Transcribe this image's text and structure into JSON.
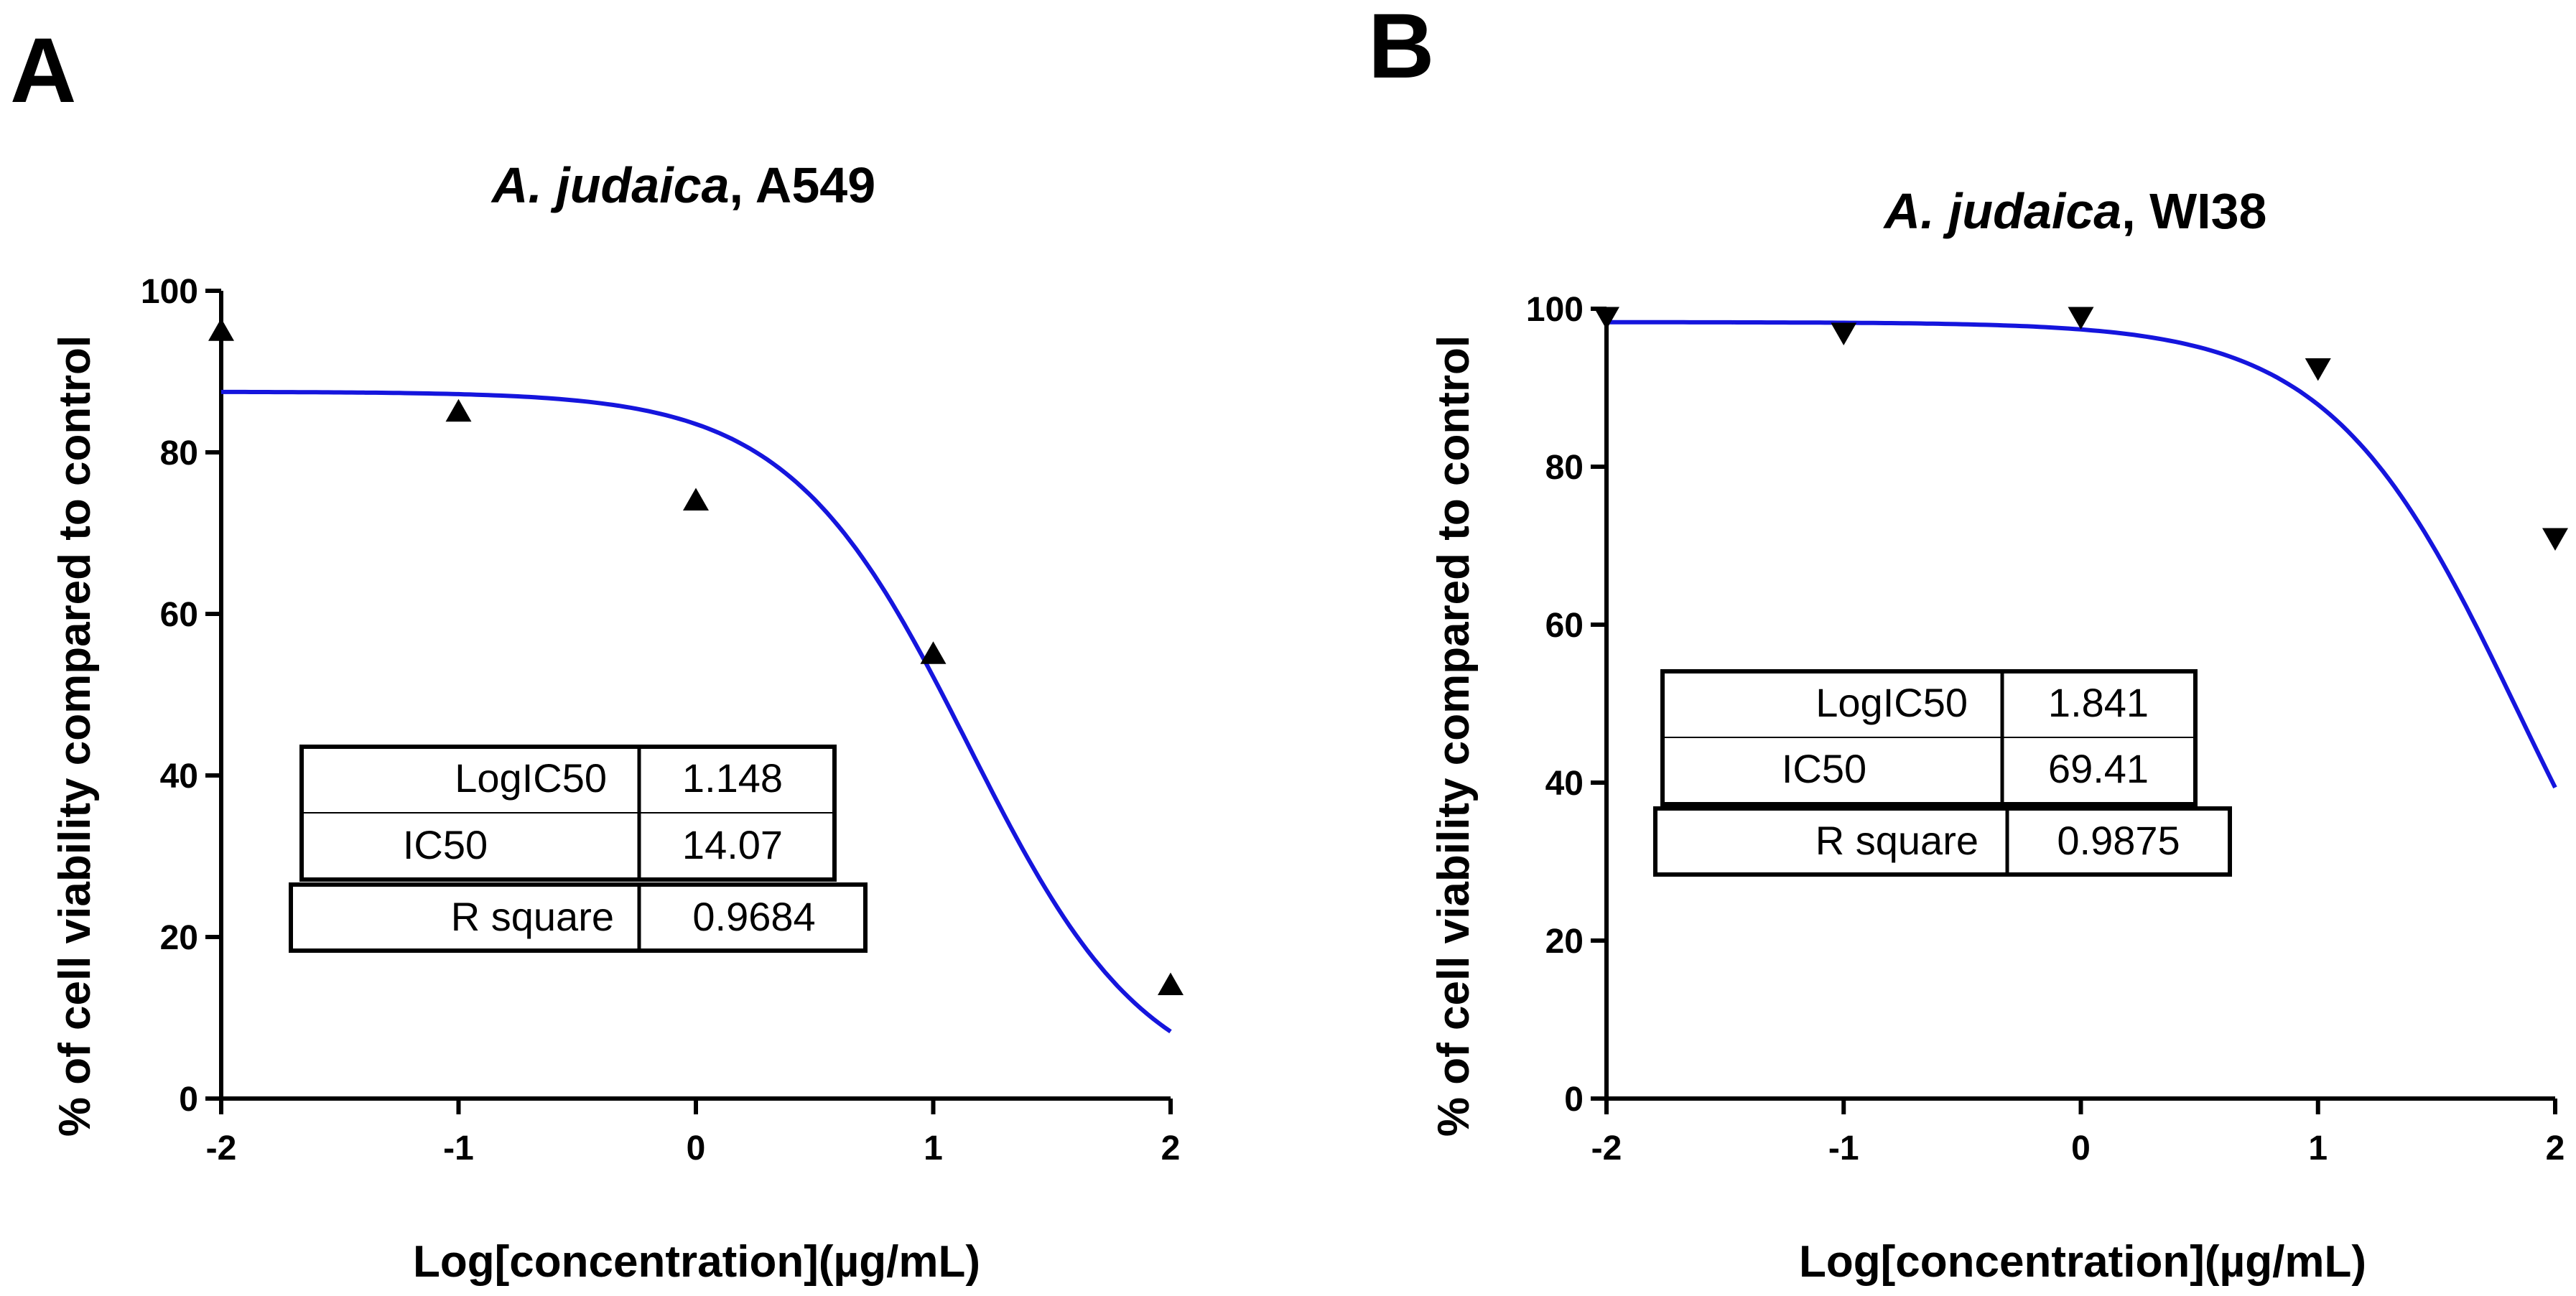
{
  "chart_data": [
    {
      "type": "scatter",
      "panel": "A",
      "title_italic": "A. judaica",
      "title_suffix": ", A549",
      "xlabel": "Log[concentration](µg/mL)",
      "ylabel": "% of cell viability compared to control",
      "xlim": [
        -2,
        2
      ],
      "ylim": [
        0,
        100
      ],
      "xticks": [
        -2,
        -1,
        0,
        1,
        2
      ],
      "yticks": [
        0,
        20,
        40,
        60,
        80,
        100
      ],
      "marker": "triangle-up",
      "series": [
        {
          "name": "data",
          "x": [
            -2,
            -1,
            0,
            1,
            2
          ],
          "y": [
            95,
            85,
            74,
            55,
            14
          ]
        }
      ],
      "fit": {
        "type": "sigmoid",
        "top": 87.5,
        "bottom": 0,
        "log_ic50": 1.148,
        "hill_slope": -1.15,
        "color": "#1515dd"
      },
      "stats_table": [
        {
          "label": "LogIC50",
          "value": "1.148"
        },
        {
          "label": "IC50",
          "value": "14.07"
        },
        {
          "label": "R square",
          "value": "0.9684"
        }
      ]
    },
    {
      "type": "scatter",
      "panel": "B",
      "title_italic": "A. judaica",
      "title_suffix": ", WI38",
      "xlabel": "Log[concentration](µg/mL)",
      "ylabel": "% of cell viability compared to control",
      "xlim": [
        -2,
        2
      ],
      "ylim": [
        0,
        100
      ],
      "xticks": [
        -2,
        -1,
        0,
        1,
        2
      ],
      "yticks": [
        0,
        20,
        40,
        60,
        80,
        100
      ],
      "marker": "triangle-down",
      "series": [
        {
          "name": "data",
          "x": [
            -2,
            -1,
            0,
            1,
            2
          ],
          "y": [
            99,
            97,
            99,
            92.5,
            71
          ]
        }
      ],
      "fit": {
        "type": "sigmoid",
        "top": 98.3,
        "bottom": 0,
        "log_ic50": 1.841,
        "hill_slope": -1.1,
        "color": "#1515dd"
      },
      "stats_table": [
        {
          "label": "LogIC50",
          "value": "1.841"
        },
        {
          "label": "IC50",
          "value": "69.41"
        },
        {
          "label": "R square",
          "value": "0.9875"
        }
      ]
    }
  ]
}
